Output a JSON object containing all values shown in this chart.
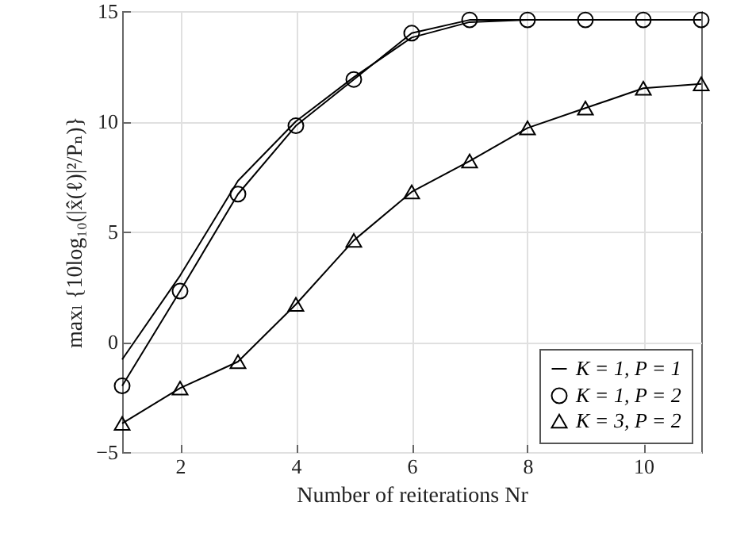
{
  "chart_data": {
    "type": "line",
    "xlabel": "Number of reiterations Nr",
    "ylabel": "maxₗ {10log₁₀(|x̂(ℓ)|²/Pₙ)}",
    "x": [
      1,
      2,
      3,
      4,
      5,
      6,
      7,
      8,
      9,
      10,
      11
    ],
    "series": [
      {
        "name": "K = 1, P = 1",
        "color": "#000000",
        "marker": "none",
        "values": [
          -0.8,
          3.0,
          7.3,
          10.0,
          12.0,
          13.8,
          14.5,
          14.6,
          14.6,
          14.6,
          14.6
        ]
      },
      {
        "name": "K = 1, P = 2",
        "color": "#000000",
        "marker": "circle",
        "values": [
          -2.0,
          2.3,
          6.7,
          9.8,
          11.9,
          14.0,
          14.6,
          14.6,
          14.6,
          14.6,
          14.6
        ]
      },
      {
        "name": "K = 3, P = 2",
        "color": "#000000",
        "marker": "triangle",
        "values": [
          -3.7,
          -2.1,
          -0.9,
          1.7,
          4.6,
          6.8,
          8.2,
          9.7,
          10.6,
          11.5,
          11.7
        ]
      }
    ],
    "xlim": [
      1,
      11
    ],
    "xticks": [
      2,
      4,
      6,
      8,
      10
    ],
    "ylim": [
      -5,
      15
    ],
    "yticks": [
      -5,
      0,
      5,
      10,
      15
    ],
    "grid": true,
    "legend": "bottom right"
  }
}
